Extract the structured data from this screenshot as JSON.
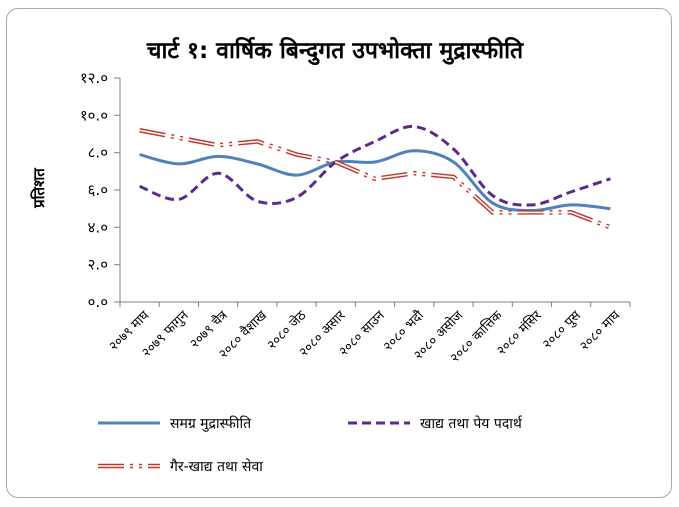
{
  "chart_data": {
    "type": "line",
    "title": "चार्ट १: वार्षिक बिन्दुगत उपभोक्ता मुद्रास्फीति",
    "ylabel": "प्रतिशत",
    "xlabel": "",
    "ylim": [
      0,
      12
    ],
    "yticks": [
      {
        "value": 0,
        "label": "०.०"
      },
      {
        "value": 2,
        "label": "२.०"
      },
      {
        "value": 4,
        "label": "४.०"
      },
      {
        "value": 6,
        "label": "६.०"
      },
      {
        "value": 8,
        "label": "८.०"
      },
      {
        "value": 10,
        "label": "१०.०"
      },
      {
        "value": 12,
        "label": "१२.०"
      }
    ],
    "categories": [
      "२०७९ माघ",
      "२०७९ फागुन",
      "२०७९ चैत्र",
      "२०८० वैशाख",
      "२०८० जेठ",
      "२०८० असार",
      "२०८० साउन",
      "२०८० भदौ",
      "२०८० असोज",
      "२०८० कात्तिक",
      "२०८० मंसिर",
      "२०८० पुस",
      "२०८० माघ"
    ],
    "series": [
      {
        "name": "समग्र मुद्रास्फीति",
        "style": "solid",
        "color": "#4f81bd",
        "values": [
          7.9,
          7.4,
          7.8,
          7.4,
          6.8,
          7.5,
          7.5,
          8.1,
          7.5,
          5.3,
          4.9,
          5.2,
          5.0
        ]
      },
      {
        "name": "खाद्य तथा पेय पदार्थ",
        "style": "dashed",
        "color": "#5c2a8f",
        "values": [
          6.2,
          5.5,
          6.9,
          5.4,
          5.6,
          7.5,
          8.6,
          9.4,
          8.2,
          5.7,
          5.2,
          5.9,
          6.6
        ]
      },
      {
        "name": "गैर-खाद्य तथा सेवा",
        "style": "double-dotted",
        "color": "#c0392b",
        "values": [
          9.2,
          8.8,
          8.4,
          8.6,
          7.9,
          7.5,
          6.6,
          6.9,
          6.7,
          4.8,
          4.8,
          4.8,
          4.0
        ]
      }
    ],
    "grid": false,
    "legend_position": "bottom"
  }
}
